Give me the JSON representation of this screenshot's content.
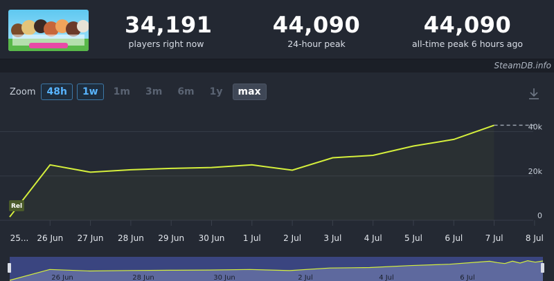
{
  "stats": [
    {
      "value": "34,191",
      "label": "players right now"
    },
    {
      "value": "44,090",
      "label": "24-hour peak"
    },
    {
      "value": "44,090",
      "label": "all-time peak 6 hours ago"
    }
  ],
  "credit": "SteamDB.info",
  "zoom": {
    "label": "Zoom",
    "buttons": [
      {
        "label": "48h",
        "state": "available"
      },
      {
        "label": "1w",
        "state": "available"
      },
      {
        "label": "1m",
        "state": "disabled"
      },
      {
        "label": "3m",
        "state": "disabled"
      },
      {
        "label": "6m",
        "state": "disabled"
      },
      {
        "label": "1y",
        "state": "disabled"
      },
      {
        "label": "max",
        "state": "selected"
      }
    ]
  },
  "colors": {
    "line": "#d6f03c",
    "navigator_fill": "#3a4580",
    "accent_blue": "#58b4ff",
    "release_badge": "#4a5a2a"
  },
  "icons": {
    "download": "download-icon"
  },
  "chart_data": {
    "type": "line",
    "x_tick_labels": [
      "25...",
      "26 Jun",
      "27 Jun",
      "28 Jun",
      "29 Jun",
      "30 Jun",
      "1 Jul",
      "2 Jul",
      "3 Jul",
      "4 Jul",
      "5 Jul",
      "6 Jul",
      "7 Jul",
      "8 Jul"
    ],
    "y_tick_labels": [
      "0",
      "20k",
      "40k"
    ],
    "ylim": [
      0,
      48000
    ],
    "grid": true,
    "series": [
      {
        "x": [
          0,
          1,
          2,
          3,
          4,
          5,
          6,
          7,
          8,
          9,
          10,
          11,
          12
        ],
        "values": [
          1500,
          25000,
          21700,
          22800,
          23400,
          23800,
          25000,
          22600,
          28200,
          29300,
          33500,
          36500,
          42900
        ]
      }
    ],
    "peak_value": 44090,
    "annotations": [
      {
        "label": "Rel",
        "x": 0
      }
    ],
    "navigator_tick_labels": [
      "26 Jun",
      "28 Jun",
      "30 Jun",
      "2 Jul",
      "4 Jul",
      "6 Jul"
    ]
  }
}
